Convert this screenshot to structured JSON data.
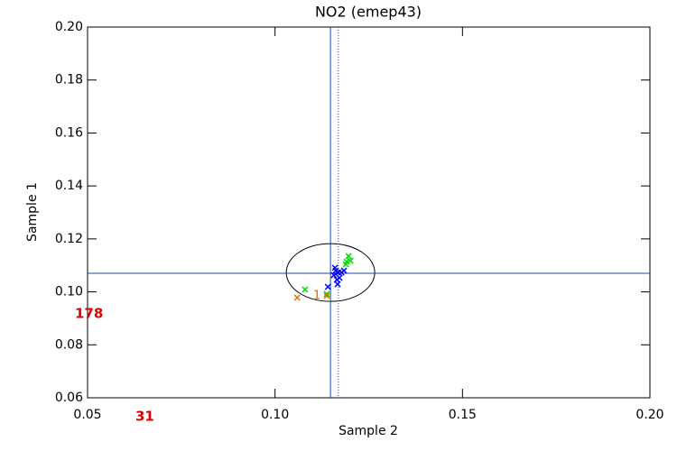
{
  "chart_data": {
    "type": "scatter",
    "title": "NO2 (emep43)",
    "xlabel": "Sample 2",
    "ylabel": "Sample 1",
    "xlim": [
      0.05,
      0.2
    ],
    "ylim": [
      0.06,
      0.2
    ],
    "xticks": [
      {
        "value": 0.05,
        "label": "0.05"
      },
      {
        "value": 0.1,
        "label": "0.10"
      },
      {
        "value": 0.15,
        "label": "0.15"
      },
      {
        "value": 0.2,
        "label": "0.20"
      }
    ],
    "yticks": [
      {
        "value": 0.06,
        "label": "0.06"
      },
      {
        "value": 0.08,
        "label": "0.08"
      },
      {
        "value": 0.1,
        "label": "0.10"
      },
      {
        "value": 0.12,
        "label": "0.12"
      },
      {
        "value": 0.14,
        "label": "0.14"
      },
      {
        "value": 0.16,
        "label": "0.16"
      },
      {
        "value": 0.18,
        "label": "0.18"
      },
      {
        "value": 0.2,
        "label": "0.20"
      }
    ],
    "series": [
      {
        "color": "#0000ff",
        "x": [
          0.1141,
          0.1157,
          0.1162,
          0.1169,
          0.1177,
          0.1184,
          0.1165,
          0.1167,
          0.116,
          0.1172
        ],
        "y": [
          0.1019,
          0.1063,
          0.108,
          0.1073,
          0.1073,
          0.108,
          0.1046,
          0.1029,
          0.1091,
          0.1053
        ]
      },
      {
        "color": "#00dd00",
        "x": [
          0.1196,
          0.1191,
          0.1201,
          0.1189,
          0.108,
          0.1138
        ],
        "y": [
          0.1135,
          0.1114,
          0.1118,
          0.1104,
          0.1009,
          0.0992
        ]
      },
      {
        "color": "#e07000",
        "x": [
          0.1059,
          0.1138
        ],
        "y": [
          0.0978,
          0.0985
        ]
      }
    ],
    "ref_x": 0.1148,
    "ref_x_dotted": 0.1169,
    "ref_y": 0.107,
    "ellipse": {
      "cx": 0.1148,
      "cy": 0.1073,
      "rx": 0.0118,
      "ry": 0.0109
    },
    "annotations": [
      "178",
      "31",
      "1"
    ]
  }
}
